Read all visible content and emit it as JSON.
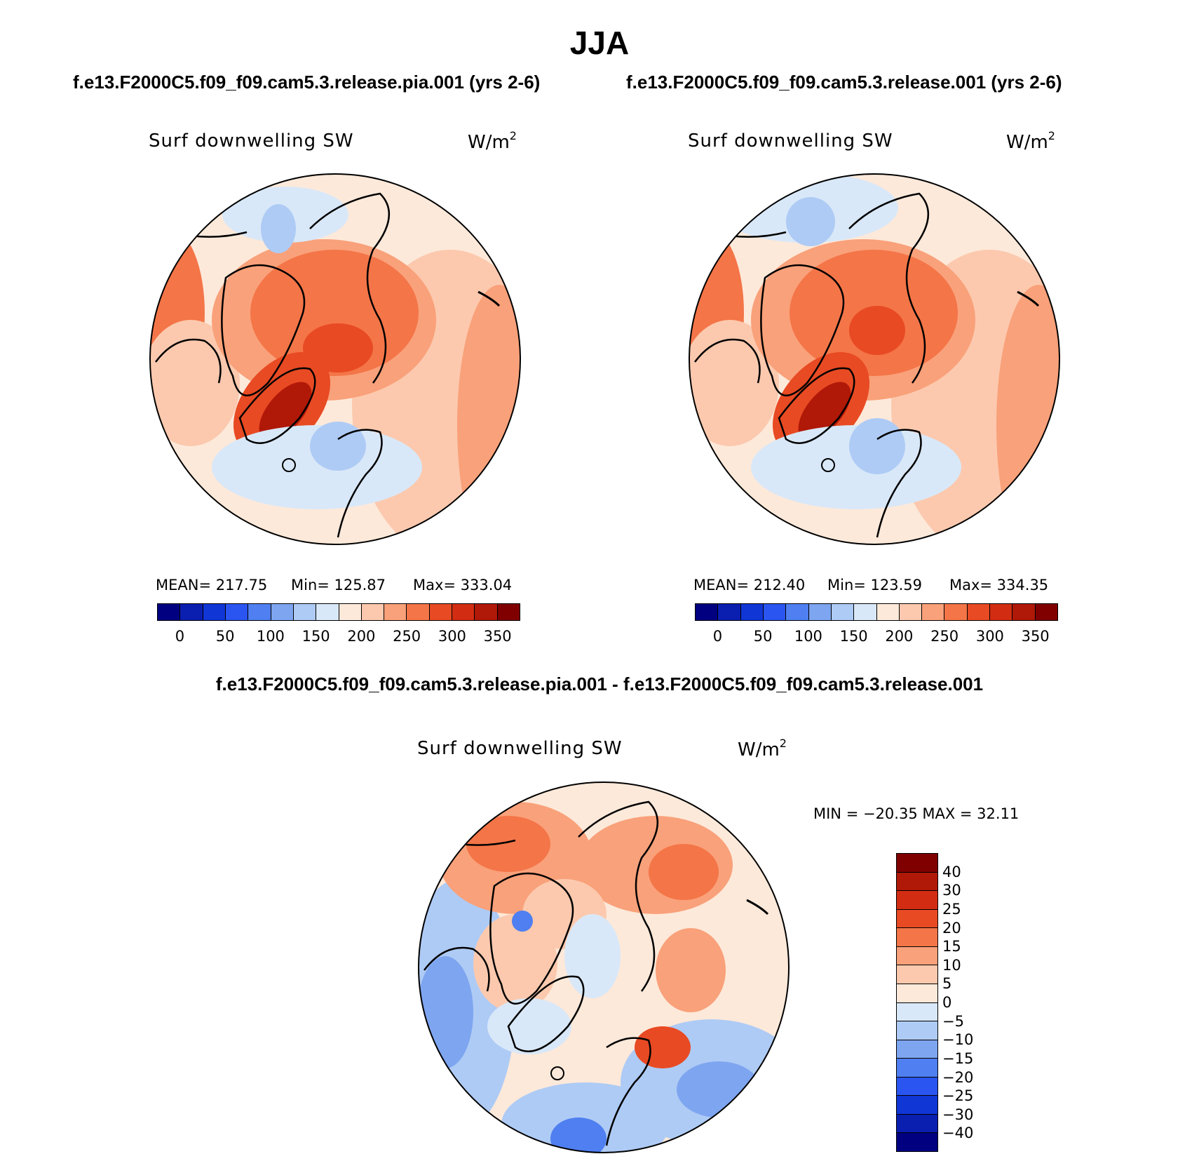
{
  "title": "JJA",
  "case_a": "f.e13.F2000C5.f09_f09.cam5.3.release.pia.001 (yrs 2-6)",
  "case_b": "f.e13.F2000C5.f09_f09.cam5.3.release.001 (yrs 2-6)",
  "diff_title": "f.e13.F2000C5.f09_f09.cam5.3.release.pia.001 - f.e13.F2000C5.f09_f09.cam5.3.release.001",
  "variable": "Surf downwelling SW",
  "unit_base": "W/m",
  "unit_exp": "2",
  "panels": [
    {
      "mean": "MEAN= 217.75",
      "min": "Min= 125.87",
      "max": "Max= 333.04"
    },
    {
      "mean": "MEAN= 212.40",
      "min": "Min= 123.59",
      "max": "Max= 334.35"
    }
  ],
  "diff_stats": "MIN = −20.35 MAX =   32.11",
  "abs_colorbar": {
    "ticks": [
      "0",
      "50",
      "100",
      "150",
      "200",
      "250",
      "300",
      "350"
    ],
    "colors": [
      "#000080",
      "#0a1fb0",
      "#1036d6",
      "#2b55f0",
      "#4f7ff0",
      "#7ea5f0",
      "#aecbf5",
      "#d9e8f8",
      "#fde9da",
      "#fcc9ae",
      "#f9a17a",
      "#f47548",
      "#e84a23",
      "#d22d12",
      "#b01808",
      "#800000"
    ]
  },
  "diff_colorbar": {
    "ticks": [
      "40",
      "30",
      "25",
      "20",
      "15",
      "10",
      "5",
      "0",
      "−5",
      "−10",
      "−15",
      "−20",
      "−25",
      "−30",
      "−40"
    ],
    "colors": [
      "#800000",
      "#b01808",
      "#d22d12",
      "#e84a23",
      "#f47548",
      "#f9a17a",
      "#fcc9ae",
      "#fde9da",
      "#d9e8f8",
      "#aecbf5",
      "#7ea5f0",
      "#4f7ff0",
      "#2b55f0",
      "#1036d6",
      "#0a1fb0",
      "#000080"
    ]
  }
}
